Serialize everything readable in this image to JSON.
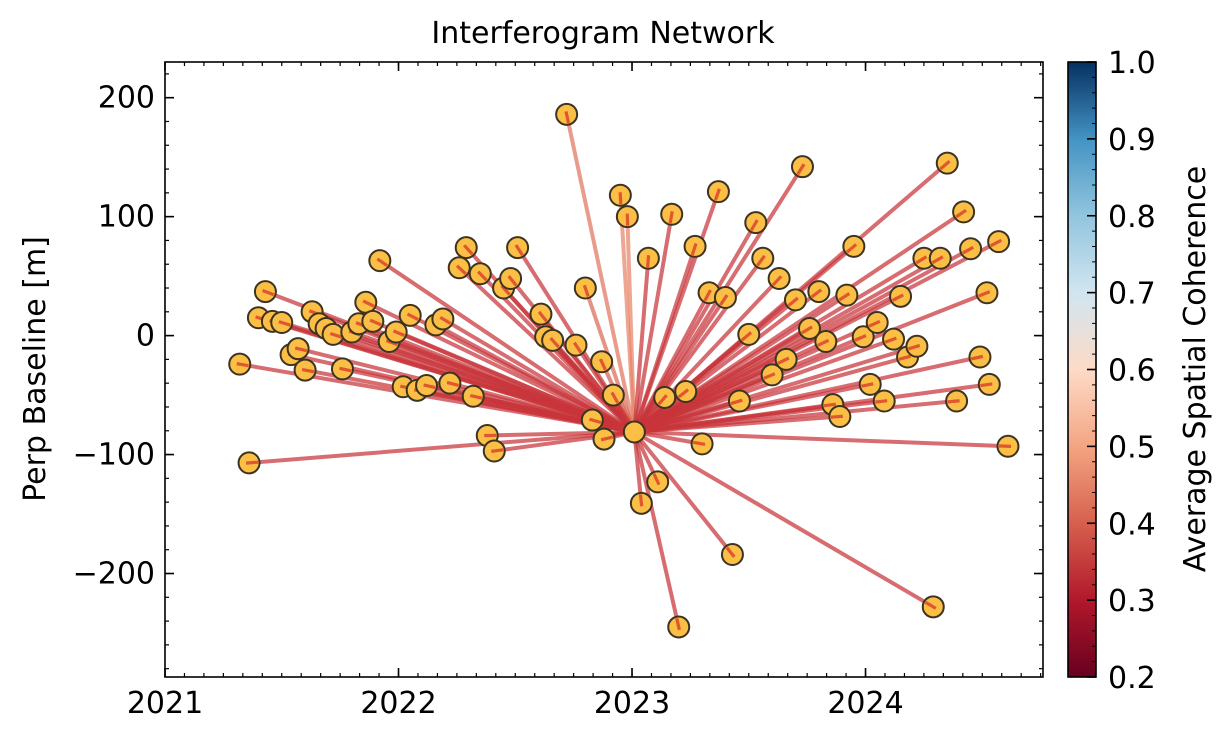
{
  "chart_data": {
    "type": "network",
    "title": "Interferogram Network",
    "xlabel": "",
    "ylabel": "Perp Baseline [m]",
    "xlim": [
      2021.0,
      2024.76
    ],
    "ylim": [
      -287,
      230
    ],
    "x_ticks": [
      2021,
      2022,
      2023,
      2024
    ],
    "y_ticks": [
      -200,
      -100,
      0,
      100,
      200
    ],
    "x_tick_labels": [
      "2021",
      "2022",
      "2023",
      "2024"
    ],
    "y_tick_labels": [
      "−200",
      "−100",
      "0",
      "100",
      "200"
    ],
    "reference": {
      "x": 2023.01,
      "y": -81
    },
    "points": [
      {
        "x": 2021.32,
        "y": -24,
        "c": 0.4
      },
      {
        "x": 2021.36,
        "y": -107,
        "c": 0.4
      },
      {
        "x": 2021.4,
        "y": 15,
        "c": 0.4
      },
      {
        "x": 2021.43,
        "y": 37,
        "c": 0.4
      },
      {
        "x": 2021.46,
        "y": 12,
        "c": 0.4
      },
      {
        "x": 2021.5,
        "y": 11,
        "c": 0.4
      },
      {
        "x": 2021.54,
        "y": -16,
        "c": 0.4
      },
      {
        "x": 2021.57,
        "y": -11,
        "c": 0.4
      },
      {
        "x": 2021.6,
        "y": -29,
        "c": 0.4
      },
      {
        "x": 2021.63,
        "y": 20,
        "c": 0.4
      },
      {
        "x": 2021.66,
        "y": 10,
        "c": 0.4
      },
      {
        "x": 2021.69,
        "y": 6,
        "c": 0.4
      },
      {
        "x": 2021.72,
        "y": 1,
        "c": 0.4
      },
      {
        "x": 2021.76,
        "y": -28,
        "c": 0.4
      },
      {
        "x": 2021.8,
        "y": 3,
        "c": 0.4
      },
      {
        "x": 2021.83,
        "y": 10,
        "c": 0.4
      },
      {
        "x": 2021.86,
        "y": 28,
        "c": 0.4
      },
      {
        "x": 2021.89,
        "y": 12,
        "c": 0.4
      },
      {
        "x": 2021.92,
        "y": 63,
        "c": 0.4
      },
      {
        "x": 2021.96,
        "y": -5,
        "c": 0.4
      },
      {
        "x": 2021.99,
        "y": 3,
        "c": 0.4
      },
      {
        "x": 2022.02,
        "y": -43,
        "c": 0.4
      },
      {
        "x": 2022.05,
        "y": 17,
        "c": 0.4
      },
      {
        "x": 2022.08,
        "y": -46,
        "c": 0.4
      },
      {
        "x": 2022.12,
        "y": -42,
        "c": 0.4
      },
      {
        "x": 2022.16,
        "y": 9,
        "c": 0.4
      },
      {
        "x": 2022.19,
        "y": 14,
        "c": 0.4
      },
      {
        "x": 2022.22,
        "y": -40,
        "c": 0.4
      },
      {
        "x": 2022.26,
        "y": 57,
        "c": 0.4
      },
      {
        "x": 2022.29,
        "y": 74,
        "c": 0.4
      },
      {
        "x": 2022.32,
        "y": -51,
        "c": 0.4
      },
      {
        "x": 2022.35,
        "y": 52,
        "c": 0.4
      },
      {
        "x": 2022.38,
        "y": -84,
        "c": 0.4
      },
      {
        "x": 2022.41,
        "y": -97,
        "c": 0.4
      },
      {
        "x": 2022.45,
        "y": 40,
        "c": 0.4
      },
      {
        "x": 2022.48,
        "y": 48,
        "c": 0.4
      },
      {
        "x": 2022.51,
        "y": 74,
        "c": 0.4
      },
      {
        "x": 2022.61,
        "y": 18,
        "c": 0.4
      },
      {
        "x": 2022.63,
        "y": -1,
        "c": 0.4
      },
      {
        "x": 2022.66,
        "y": -4,
        "c": 0.4
      },
      {
        "x": 2022.72,
        "y": 186,
        "c": 0.55
      },
      {
        "x": 2022.76,
        "y": -8,
        "c": 0.4
      },
      {
        "x": 2022.8,
        "y": 40,
        "c": 0.52
      },
      {
        "x": 2022.83,
        "y": -71,
        "c": 0.4
      },
      {
        "x": 2022.87,
        "y": -22,
        "c": 0.5
      },
      {
        "x": 2022.88,
        "y": -87,
        "c": 0.4
      },
      {
        "x": 2022.92,
        "y": -50,
        "c": 0.4
      },
      {
        "x": 2022.95,
        "y": 118,
        "c": 0.58
      },
      {
        "x": 2022.98,
        "y": 100,
        "c": 0.58
      },
      {
        "x": 2023.01,
        "y": -81,
        "c": 0.4
      },
      {
        "x": 2023.04,
        "y": -141,
        "c": 0.4
      },
      {
        "x": 2023.07,
        "y": 65,
        "c": 0.4
      },
      {
        "x": 2023.11,
        "y": -123,
        "c": 0.4
      },
      {
        "x": 2023.14,
        "y": -52,
        "c": 0.4
      },
      {
        "x": 2023.17,
        "y": 102,
        "c": 0.4
      },
      {
        "x": 2023.2,
        "y": -245,
        "c": 0.4
      },
      {
        "x": 2023.23,
        "y": -47,
        "c": 0.4
      },
      {
        "x": 2023.27,
        "y": 75,
        "c": 0.4
      },
      {
        "x": 2023.3,
        "y": -91,
        "c": 0.4
      },
      {
        "x": 2023.33,
        "y": 36,
        "c": 0.4
      },
      {
        "x": 2023.37,
        "y": 121,
        "c": 0.4
      },
      {
        "x": 2023.4,
        "y": 32,
        "c": 0.4
      },
      {
        "x": 2023.43,
        "y": -184,
        "c": 0.4
      },
      {
        "x": 2023.46,
        "y": -55,
        "c": 0.4
      },
      {
        "x": 2023.5,
        "y": 1,
        "c": 0.4
      },
      {
        "x": 2023.53,
        "y": 95,
        "c": 0.4
      },
      {
        "x": 2023.56,
        "y": 65,
        "c": 0.4
      },
      {
        "x": 2023.6,
        "y": -33,
        "c": 0.4
      },
      {
        "x": 2023.63,
        "y": 48,
        "c": 0.4
      },
      {
        "x": 2023.66,
        "y": -20,
        "c": 0.4
      },
      {
        "x": 2023.7,
        "y": 30,
        "c": 0.4
      },
      {
        "x": 2023.73,
        "y": 142,
        "c": 0.4
      },
      {
        "x": 2023.76,
        "y": 6,
        "c": 0.4
      },
      {
        "x": 2023.8,
        "y": 37,
        "c": 0.4
      },
      {
        "x": 2023.83,
        "y": -5,
        "c": 0.4
      },
      {
        "x": 2023.86,
        "y": -58,
        "c": 0.4
      },
      {
        "x": 2023.89,
        "y": -68,
        "c": 0.4
      },
      {
        "x": 2023.92,
        "y": 34,
        "c": 0.4
      },
      {
        "x": 2023.95,
        "y": 75,
        "c": 0.4
      },
      {
        "x": 2023.99,
        "y": -1,
        "c": 0.4
      },
      {
        "x": 2024.02,
        "y": -41,
        "c": 0.4
      },
      {
        "x": 2024.05,
        "y": 11,
        "c": 0.4
      },
      {
        "x": 2024.08,
        "y": -55,
        "c": 0.4
      },
      {
        "x": 2024.12,
        "y": -3,
        "c": 0.4
      },
      {
        "x": 2024.15,
        "y": 33,
        "c": 0.4
      },
      {
        "x": 2024.18,
        "y": -18,
        "c": 0.4
      },
      {
        "x": 2024.22,
        "y": -9,
        "c": 0.4
      },
      {
        "x": 2024.25,
        "y": 65,
        "c": 0.4
      },
      {
        "x": 2024.29,
        "y": -228,
        "c": 0.4
      },
      {
        "x": 2024.32,
        "y": 65,
        "c": 0.4
      },
      {
        "x": 2024.35,
        "y": 145,
        "c": 0.4
      },
      {
        "x": 2024.39,
        "y": -55,
        "c": 0.4
      },
      {
        "x": 2024.42,
        "y": 104,
        "c": 0.4
      },
      {
        "x": 2024.45,
        "y": 73,
        "c": 0.4
      },
      {
        "x": 2024.49,
        "y": -18,
        "c": 0.4
      },
      {
        "x": 2024.52,
        "y": 36,
        "c": 0.4
      },
      {
        "x": 2024.53,
        "y": -41,
        "c": 0.4
      },
      {
        "x": 2024.57,
        "y": 79,
        "c": 0.4
      },
      {
        "x": 2024.61,
        "y": -93,
        "c": 0.4
      }
    ],
    "colorbar": {
      "label": "Average Spatial Coherence",
      "range": [
        0.2,
        1.0
      ],
      "tick_values": [
        0.2,
        0.3,
        0.4,
        0.5,
        0.6,
        0.7,
        0.8,
        0.9,
        1.0
      ],
      "tick_labels": [
        "0.2",
        "0.3",
        "0.4",
        "0.5",
        "0.6",
        "0.7",
        "0.8",
        "0.9",
        "1.0"
      ],
      "colormap": "RdBu"
    },
    "colors": {
      "node_fill": "#fbbf45",
      "node_edge": "#3d3320",
      "node_dash": "#e0562f"
    }
  }
}
